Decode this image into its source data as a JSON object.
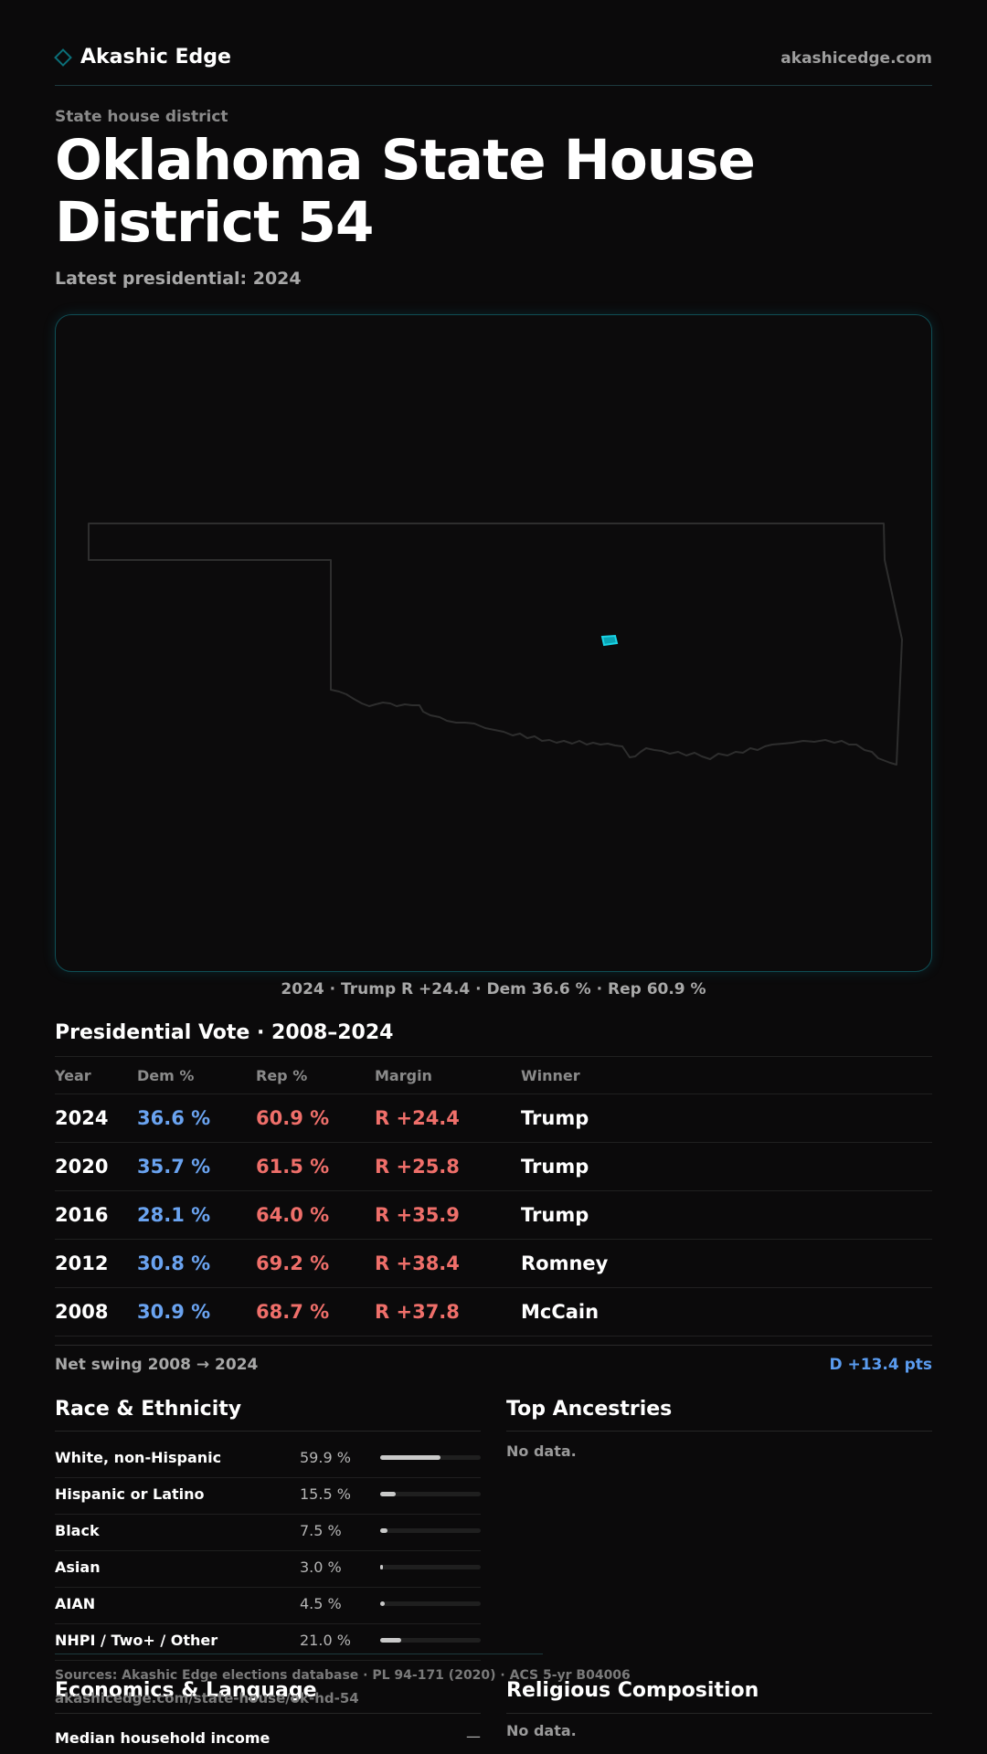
{
  "header": {
    "brand_name": "Akashic Edge",
    "domain": "akashicedge.com",
    "brand_icon": "diamond-outline-icon",
    "brand_icon_color": "#0b6f78"
  },
  "page": {
    "kicker": "State house district",
    "title": "Oklahoma State House District 54",
    "subtitle": "Latest presidential: 2024"
  },
  "map": {
    "caption": "2024 · Trump R +24.4 · Dem 36.6 % · Rep 60.9 %",
    "highlight_color": "#19b6c8"
  },
  "presidential": {
    "title": "Presidential Vote · 2008–2024",
    "columns": [
      "Year",
      "Dem %",
      "Rep %",
      "Margin",
      "Winner"
    ],
    "rows": [
      {
        "year": "2024",
        "dem": "36.6 %",
        "rep": "60.9 %",
        "margin": "R +24.4",
        "winner": "Trump"
      },
      {
        "year": "2020",
        "dem": "35.7 %",
        "rep": "61.5 %",
        "margin": "R +25.8",
        "winner": "Trump"
      },
      {
        "year": "2016",
        "dem": "28.1 %",
        "rep": "64.0 %",
        "margin": "R +35.9",
        "winner": "Trump"
      },
      {
        "year": "2012",
        "dem": "30.8 %",
        "rep": "69.2 %",
        "margin": "R +38.4",
        "winner": "Romney"
      },
      {
        "year": "2008",
        "dem": "30.9 %",
        "rep": "68.7 %",
        "margin": "R +37.8",
        "winner": "McCain"
      }
    ],
    "dem_color": "#6aa3f0",
    "rep_color": "#ef6f6a"
  },
  "swing": {
    "label": "Net swing 2008 → 2024",
    "value": "D +13.4 pts"
  },
  "race": {
    "title": "Race & Ethnicity",
    "items": [
      {
        "label": "White, non-Hispanic",
        "value": "59.9 %",
        "pct": 59.9
      },
      {
        "label": "Hispanic or Latino",
        "value": "15.5 %",
        "pct": 15.5
      },
      {
        "label": "Black",
        "value": "7.5 %",
        "pct": 7.5
      },
      {
        "label": "Asian",
        "value": "3.0 %",
        "pct": 3.0
      },
      {
        "label": "AIAN",
        "value": "4.5 %",
        "pct": 4.5
      },
      {
        "label": "NHPI / Two+ / Other",
        "value": "21.0 %",
        "pct": 21.0
      }
    ]
  },
  "ancestries": {
    "title": "Top Ancestries",
    "no_data": "No data."
  },
  "footer": {
    "sources": "Sources: Akashic Edge elections database · PL 94-171 (2020) · ACS 5-yr B04006",
    "url": "akashicedge.com/state-house/ok-hd-54"
  },
  "economics": {
    "title": "Economics & Language",
    "first_row_label": "Median household income",
    "first_row_value": "—"
  },
  "religion": {
    "title": "Religious Composition",
    "no_data": "No data."
  }
}
